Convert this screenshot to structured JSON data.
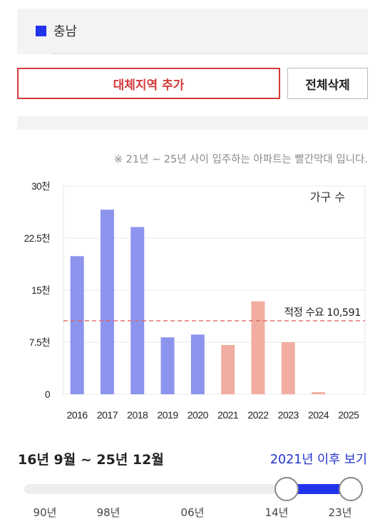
{
  "region": {
    "name": "충남",
    "color": "#2233ee"
  },
  "buttons": {
    "add": "대체지역 추가",
    "clear": "전체삭제"
  },
  "note": "※ 21년 ~ 25년 사이 입주하는 아파트는 빨간막대 입니다.",
  "chart_data": {
    "type": "bar",
    "series_label": "가구 수",
    "categories": [
      "2016",
      "2017",
      "2018",
      "2019",
      "2020",
      "2021",
      "2022",
      "2023",
      "2024",
      "2025"
    ],
    "values": [
      19900,
      26600,
      24100,
      8200,
      8600,
      7100,
      13400,
      7500,
      300,
      0
    ],
    "bar_colors": [
      "#8c94ee",
      "#8c94ee",
      "#8c94ee",
      "#8c94ee",
      "#8c94ee",
      "#f1aea0",
      "#f1aea0",
      "#f1aea0",
      "#f1aea0",
      "#f1aea0"
    ],
    "ylim": [
      0,
      30000
    ],
    "yticks": [
      0,
      7500,
      15000,
      22500,
      30000
    ],
    "ytick_labels": [
      "0",
      "7.5천",
      "15천",
      "22.5천",
      "30천"
    ],
    "reference_line": {
      "value": 10591,
      "label": "적정 수요 10,591",
      "color": "#e06666"
    },
    "grid": true
  },
  "range": {
    "text": "16년 9월 ~ 25년 12월",
    "after_link": "2021년 이후 보기",
    "labels": [
      "90년",
      "98년",
      "06년",
      "14년",
      "23년"
    ]
  }
}
